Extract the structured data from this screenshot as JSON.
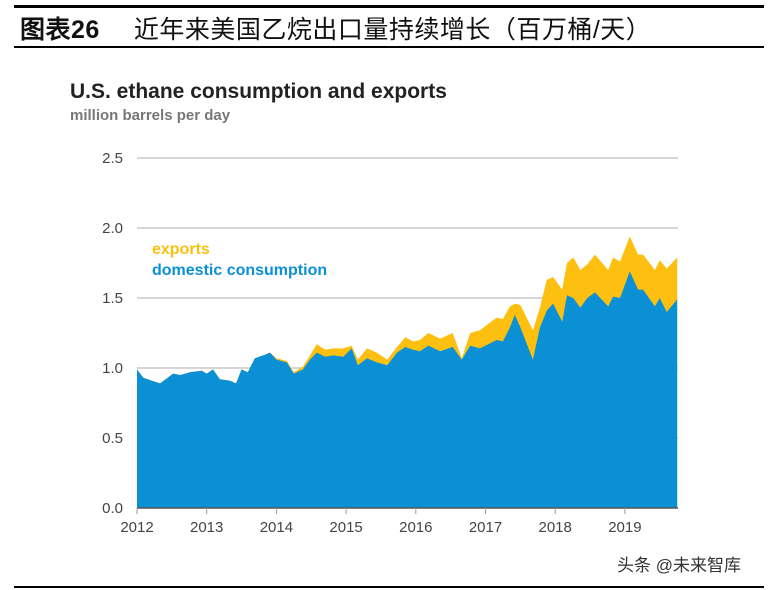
{
  "header": {
    "figure_number": "图表26",
    "title": "近年来美国乙烷出口量持续增长（百万桶/天）"
  },
  "watermark": "头条 @未来智库",
  "chart_data": {
    "type": "area",
    "stacked": true,
    "title": "U.S. ethane consumption and exports",
    "subtitle": "million barrels per day",
    "xlabel": "",
    "ylabel": "",
    "xlim": [
      2012,
      2019.75
    ],
    "ylim": [
      0,
      2.5
    ],
    "yticks": [
      "0.0",
      "0.5",
      "1.0",
      "1.5",
      "2.0",
      "2.5"
    ],
    "xticks": [
      "2012",
      "2013",
      "2014",
      "2015",
      "2016",
      "2017",
      "2018",
      "2019"
    ],
    "grid": true,
    "legend_position": "top-left",
    "colors": {
      "exports": "#fdc010",
      "domestic consumption": "#0b90d6"
    },
    "x": [
      2012.0,
      2012.09,
      2012.33,
      2012.52,
      2012.62,
      2012.76,
      2012.93,
      2013.0,
      2013.09,
      2013.19,
      2013.33,
      2013.42,
      2013.5,
      2013.59,
      2013.69,
      2013.81,
      2013.91,
      2014.0,
      2014.15,
      2014.25,
      2014.38,
      2014.48,
      2014.58,
      2014.7,
      2014.81,
      2014.96,
      2015.08,
      2015.17,
      2015.3,
      2015.44,
      2015.59,
      2015.73,
      2015.85,
      2015.96,
      2016.06,
      2016.18,
      2016.35,
      2016.53,
      2016.66,
      2016.78,
      2016.92,
      2017.16,
      2017.25,
      2017.35,
      2017.42,
      2017.5,
      2017.68,
      2017.78,
      2017.88,
      2017.97,
      2018.1,
      2018.17,
      2018.26,
      2018.36,
      2018.46,
      2018.57,
      2018.76,
      2018.83,
      2018.93,
      2019.07,
      2019.19,
      2019.26,
      2019.43,
      2019.5,
      2019.6,
      2019.75
    ],
    "series": [
      {
        "name": "domestic consumption",
        "values": [
          0.99,
          0.93,
          0.89,
          0.96,
          0.95,
          0.97,
          0.98,
          0.96,
          0.99,
          0.92,
          0.91,
          0.89,
          0.99,
          0.97,
          1.07,
          1.09,
          1.11,
          1.06,
          1.04,
          0.96,
          0.99,
          1.06,
          1.11,
          1.08,
          1.09,
          1.08,
          1.14,
          1.02,
          1.07,
          1.04,
          1.02,
          1.11,
          1.15,
          1.13,
          1.12,
          1.16,
          1.12,
          1.15,
          1.06,
          1.16,
          1.14,
          1.2,
          1.19,
          1.29,
          1.38,
          1.29,
          1.06,
          1.29,
          1.41,
          1.46,
          1.33,
          1.52,
          1.5,
          1.43,
          1.5,
          1.54,
          1.44,
          1.51,
          1.5,
          1.69,
          1.56,
          1.56,
          1.44,
          1.5,
          1.4,
          1.49
        ]
      },
      {
        "name": "exports",
        "values": [
          0,
          0,
          0,
          0,
          0,
          0,
          0,
          0,
          0,
          0,
          0,
          0,
          0,
          0,
          0,
          0,
          0,
          0.01,
          0.01,
          0.01,
          0.02,
          0.03,
          0.06,
          0.05,
          0.05,
          0.06,
          0.02,
          0.04,
          0.07,
          0.07,
          0.04,
          0.04,
          0.07,
          0.06,
          0.08,
          0.09,
          0.09,
          0.1,
          0.01,
          0.09,
          0.13,
          0.16,
          0.16,
          0.15,
          0.08,
          0.16,
          0.21,
          0.14,
          0.22,
          0.19,
          0.23,
          0.23,
          0.29,
          0.27,
          0.24,
          0.27,
          0.26,
          0.28,
          0.26,
          0.25,
          0.25,
          0.25,
          0.26,
          0.27,
          0.31,
          0.3
        ]
      }
    ]
  }
}
